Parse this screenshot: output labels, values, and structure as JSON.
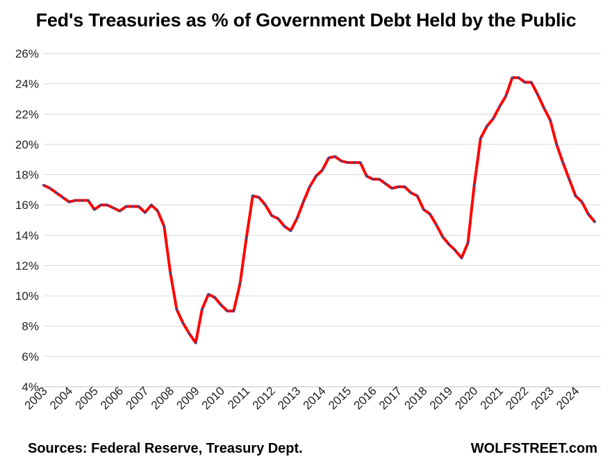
{
  "chart_data": {
    "type": "line",
    "title": "Fed's Treasuries as % of Government Debt Held by the Public",
    "xlabel": "",
    "ylabel": "",
    "ylim": [
      4,
      26
    ],
    "y_ticks": [
      "4%",
      "6%",
      "8%",
      "10%",
      "12%",
      "14%",
      "16%",
      "18%",
      "20%",
      "22%",
      "24%",
      "26%"
    ],
    "x_ticks": [
      "2003",
      "2004",
      "2005",
      "2006",
      "2007",
      "2008",
      "2009",
      "2010",
      "2011",
      "2012",
      "2013",
      "2014",
      "2015",
      "2016",
      "2017",
      "2018",
      "2019",
      "2020",
      "2021",
      "2022",
      "2023",
      "2024"
    ],
    "grid": true,
    "legend": "none",
    "series": [
      {
        "name": "Fed's Treasuries as % of Government Debt Held by the Public",
        "color": "#ff0000",
        "marker_color": "#3a4a8a",
        "x_start": 2003.0,
        "x_step": 0.25,
        "values": [
          17.3,
          17.1,
          16.8,
          16.5,
          16.2,
          16.3,
          16.3,
          16.3,
          15.7,
          16.0,
          16.0,
          15.8,
          15.6,
          15.9,
          15.9,
          15.9,
          15.5,
          16.0,
          15.6,
          14.6,
          11.5,
          9.1,
          8.2,
          7.5,
          6.9,
          9.1,
          10.1,
          9.9,
          9.4,
          9.0,
          9.0,
          10.8,
          13.8,
          16.6,
          16.5,
          16.0,
          15.3,
          15.1,
          14.6,
          14.3,
          15.1,
          16.2,
          17.2,
          17.9,
          18.3,
          19.1,
          19.2,
          18.9,
          18.8,
          18.8,
          18.8,
          17.9,
          17.7,
          17.7,
          17.4,
          17.1,
          17.2,
          17.2,
          16.8,
          16.6,
          15.7,
          15.4,
          14.7,
          13.9,
          13.4,
          13.0,
          12.5,
          13.5,
          17.3,
          20.4,
          21.2,
          21.7,
          22.5,
          23.2,
          24.4,
          24.4,
          24.1,
          24.1,
          23.3,
          22.4,
          21.6,
          20.0,
          18.8,
          17.7,
          16.6,
          16.2,
          15.4,
          14.9
        ]
      }
    ]
  },
  "footer": {
    "sources": "Sources: Federal Reserve, Treasury Dept.",
    "brand": "WOLFSTREET.com"
  }
}
